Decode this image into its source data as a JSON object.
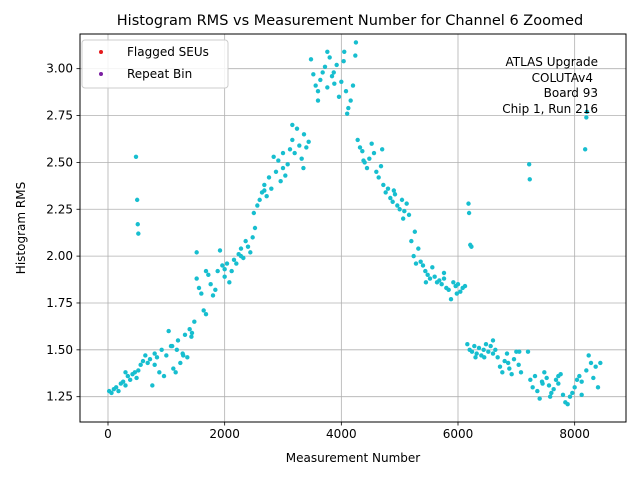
{
  "chart_data": {
    "type": "scatter",
    "title": "Histogram RMS vs Measurement Number for Channel 6 Zoomed",
    "xlabel": "Measurement Number",
    "ylabel": "Histogram RMS",
    "xlim": [
      -480,
      8880
    ],
    "ylim": [
      1.115,
      3.185
    ],
    "xticks": [
      0,
      2000,
      4000,
      6000,
      8000
    ],
    "xtick_labels": [
      "0",
      "2000",
      "4000",
      "6000",
      "8000"
    ],
    "yticks": [
      1.25,
      1.5,
      1.75,
      2.0,
      2.25,
      2.5,
      2.75,
      3.0
    ],
    "ytick_labels": [
      "1.25",
      "1.50",
      "1.75",
      "2.00",
      "2.25",
      "2.50",
      "2.75",
      "3.00"
    ],
    "grid": true,
    "legend_placement": "upper-left",
    "legend": [
      {
        "label": "Flagged SEUs",
        "color": "#e41a1c"
      },
      {
        "label": "Repeat Bin",
        "color": "#7b1fa2"
      }
    ],
    "annotation_lines": [
      "ATLAS Upgrade",
      "COLUTAv4",
      "Board 93",
      "Chip 1, Run 216"
    ],
    "marker_color": "#17becf",
    "series": [
      {
        "color": "#17becf",
        "points": [
          [
            20,
            1.28
          ],
          [
            60,
            1.27
          ],
          [
            100,
            1.29
          ],
          [
            140,
            1.3
          ],
          [
            180,
            1.28
          ],
          [
            220,
            1.32
          ],
          [
            260,
            1.33
          ],
          [
            300,
            1.31
          ],
          [
            340,
            1.36
          ],
          [
            380,
            1.34
          ],
          [
            420,
            1.37
          ],
          [
            460,
            1.38
          ],
          [
            490,
            1.35
          ],
          [
            520,
            1.39
          ],
          [
            560,
            1.42
          ],
          [
            600,
            1.44
          ],
          [
            640,
            1.47
          ],
          [
            680,
            1.43
          ],
          [
            720,
            1.45
          ],
          [
            760,
            1.31
          ],
          [
            800,
            1.48
          ],
          [
            840,
            1.46
          ],
          [
            880,
            1.38
          ],
          [
            920,
            1.5
          ],
          [
            960,
            1.36
          ],
          [
            1000,
            1.47
          ],
          [
            1040,
            1.6
          ],
          [
            1080,
            1.52
          ],
          [
            1120,
            1.4
          ],
          [
            1160,
            1.38
          ],
          [
            1200,
            1.55
          ],
          [
            1240,
            1.43
          ],
          [
            1280,
            1.48
          ],
          [
            1320,
            1.58
          ],
          [
            1360,
            1.46
          ],
          [
            1400,
            1.61
          ],
          [
            1440,
            1.59
          ],
          [
            1480,
            1.65
          ],
          [
            1520,
            1.88
          ],
          [
            1560,
            1.83
          ],
          [
            1600,
            1.8
          ],
          [
            1640,
            1.71
          ],
          [
            1680,
            1.69
          ],
          [
            1720,
            1.9
          ],
          [
            1760,
            1.85
          ],
          [
            1800,
            1.79
          ],
          [
            1840,
            1.82
          ],
          [
            1880,
            1.92
          ],
          [
            1920,
            2.03
          ],
          [
            1960,
            1.95
          ],
          [
            2000,
            1.93
          ],
          [
            2040,
            1.96
          ],
          [
            2080,
            1.86
          ],
          [
            2120,
            1.92
          ],
          [
            2160,
            1.98
          ],
          [
            2200,
            1.96
          ],
          [
            2240,
            2.01
          ],
          [
            2280,
            2.04
          ],
          [
            2320,
            1.99
          ],
          [
            2360,
            2.08
          ],
          [
            2400,
            2.05
          ],
          [
            2440,
            2.02
          ],
          [
            2480,
            2.1
          ],
          [
            2520,
            2.15
          ],
          [
            2560,
            2.27
          ],
          [
            2600,
            2.3
          ],
          [
            2640,
            2.34
          ],
          [
            2680,
            2.38
          ],
          [
            2720,
            2.32
          ],
          [
            2760,
            2.42
          ],
          [
            2800,
            2.36
          ],
          [
            2840,
            2.53
          ],
          [
            2880,
            2.45
          ],
          [
            2920,
            2.51
          ],
          [
            2960,
            2.4
          ],
          [
            3000,
            2.47
          ],
          [
            3040,
            2.43
          ],
          [
            3080,
            2.49
          ],
          [
            3120,
            2.57
          ],
          [
            3160,
            2.62
          ],
          [
            3200,
            2.55
          ],
          [
            3240,
            2.68
          ],
          [
            3280,
            2.59
          ],
          [
            3320,
            2.52
          ],
          [
            3360,
            2.65
          ],
          [
            3400,
            2.58
          ],
          [
            3440,
            2.61
          ],
          [
            3480,
            3.05
          ],
          [
            3520,
            2.97
          ],
          [
            3560,
            2.91
          ],
          [
            3600,
            2.88
          ],
          [
            3640,
            2.94
          ],
          [
            3680,
            2.98
          ],
          [
            3720,
            3.01
          ],
          [
            3760,
            2.9
          ],
          [
            3800,
            3.06
          ],
          [
            3840,
            2.96
          ],
          [
            3880,
            2.92
          ],
          [
            3920,
            3.02
          ],
          [
            3960,
            2.85
          ],
          [
            4000,
            2.93
          ],
          [
            4040,
            3.04
          ],
          [
            4080,
            2.88
          ],
          [
            4120,
            2.79
          ],
          [
            4160,
            2.83
          ],
          [
            4200,
            2.91
          ],
          [
            4240,
            3.07
          ],
          [
            4280,
            2.62
          ],
          [
            4320,
            2.58
          ],
          [
            4360,
            2.56
          ],
          [
            4400,
            2.5
          ],
          [
            4440,
            2.47
          ],
          [
            4480,
            2.52
          ],
          [
            4520,
            2.6
          ],
          [
            4560,
            2.55
          ],
          [
            4600,
            2.45
          ],
          [
            4640,
            2.42
          ],
          [
            4680,
            2.48
          ],
          [
            4720,
            2.38
          ],
          [
            4760,
            2.34
          ],
          [
            4800,
            2.36
          ],
          [
            4840,
            2.31
          ],
          [
            4880,
            2.29
          ],
          [
            4920,
            2.33
          ],
          [
            4960,
            2.27
          ],
          [
            5000,
            2.25
          ],
          [
            5040,
            2.3
          ],
          [
            5080,
            2.24
          ],
          [
            5120,
            2.28
          ],
          [
            5160,
            2.22
          ],
          [
            5200,
            2.08
          ],
          [
            5240,
            2.0
          ],
          [
            5280,
            1.96
          ],
          [
            5320,
            2.04
          ],
          [
            5360,
            1.97
          ],
          [
            5400,
            1.95
          ],
          [
            5440,
            1.92
          ],
          [
            5480,
            1.9
          ],
          [
            5520,
            1.88
          ],
          [
            5560,
            1.94
          ],
          [
            5600,
            1.89
          ],
          [
            5640,
            1.86
          ],
          [
            5680,
            1.87
          ],
          [
            5720,
            1.85
          ],
          [
            5760,
            1.88
          ],
          [
            5800,
            1.83
          ],
          [
            5840,
            1.82
          ],
          [
            5880,
            1.77
          ],
          [
            5920,
            1.86
          ],
          [
            5960,
            1.84
          ],
          [
            6000,
            1.85
          ],
          [
            6040,
            1.81
          ],
          [
            6080,
            1.83
          ],
          [
            6120,
            1.84
          ],
          [
            6160,
            1.53
          ],
          [
            6200,
            1.5
          ],
          [
            6240,
            1.49
          ],
          [
            6280,
            1.52
          ],
          [
            6320,
            1.48
          ],
          [
            6360,
            1.51
          ],
          [
            6400,
            1.47
          ],
          [
            6440,
            1.5
          ],
          [
            6480,
            1.53
          ],
          [
            6520,
            1.49
          ],
          [
            6560,
            1.52
          ],
          [
            6600,
            1.48
          ],
          [
            6640,
            1.5
          ],
          [
            6680,
            1.46
          ],
          [
            6720,
            1.41
          ],
          [
            6760,
            1.38
          ],
          [
            6800,
            1.44
          ],
          [
            6840,
            1.48
          ],
          [
            6880,
            1.4
          ],
          [
            6920,
            1.37
          ],
          [
            6960,
            1.45
          ],
          [
            7000,
            1.49
          ],
          [
            7040,
            1.42
          ],
          [
            7080,
            1.38
          ],
          [
            7200,
            1.49
          ],
          [
            7240,
            1.34
          ],
          [
            7280,
            1.3
          ],
          [
            7320,
            1.36
          ],
          [
            7360,
            1.28
          ],
          [
            7400,
            1.24
          ],
          [
            7440,
            1.33
          ],
          [
            7480,
            1.38
          ],
          [
            7520,
            1.35
          ],
          [
            7560,
            1.31
          ],
          [
            7600,
            1.27
          ],
          [
            7640,
            1.29
          ],
          [
            7680,
            1.34
          ],
          [
            7720,
            1.32
          ],
          [
            7760,
            1.37
          ],
          [
            7800,
            1.26
          ],
          [
            7840,
            1.22
          ],
          [
            7880,
            1.21
          ],
          [
            7920,
            1.25
          ],
          [
            7960,
            1.27
          ],
          [
            8000,
            1.3
          ],
          [
            8040,
            1.34
          ],
          [
            8080,
            1.36
          ],
          [
            8120,
            1.33
          ],
          [
            8200,
            1.39
          ],
          [
            8240,
            1.47
          ],
          [
            8280,
            1.43
          ],
          [
            8320,
            1.35
          ],
          [
            8360,
            1.41
          ],
          [
            8400,
            1.3
          ],
          [
            8440,
            1.43
          ],
          [
            480,
            2.53
          ],
          [
            500,
            2.3
          ],
          [
            510,
            2.17
          ],
          [
            520,
            2.12
          ],
          [
            1520,
            2.02
          ],
          [
            3760,
            3.09
          ],
          [
            4050,
            3.09
          ],
          [
            4250,
            3.14
          ],
          [
            4100,
            2.76
          ],
          [
            6180,
            2.28
          ],
          [
            6190,
            2.23
          ],
          [
            6210,
            2.06
          ],
          [
            6230,
            2.05
          ],
          [
            7220,
            2.49
          ],
          [
            7230,
            2.41
          ],
          [
            8180,
            2.57
          ],
          [
            8200,
            2.74
          ],
          [
            8210,
            2.77
          ],
          [
            1180,
            1.5
          ],
          [
            1290,
            1.47
          ],
          [
            1430,
            1.57
          ],
          [
            1680,
            1.92
          ],
          [
            2280,
            2.0
          ],
          [
            2680,
            2.35
          ],
          [
            3000,
            2.55
          ],
          [
            3160,
            2.7
          ],
          [
            3350,
            2.47
          ],
          [
            3600,
            2.83
          ],
          [
            3870,
            2.98
          ],
          [
            4380,
            2.51
          ],
          [
            4700,
            2.57
          ],
          [
            4900,
            2.35
          ],
          [
            5260,
            2.13
          ],
          [
            5760,
            1.91
          ],
          [
            6300,
            1.46
          ],
          [
            6600,
            1.55
          ],
          [
            7050,
            1.49
          ],
          [
            7450,
            1.32
          ],
          [
            7720,
            1.36
          ],
          [
            8120,
            1.26
          ],
          [
            300,
            1.38
          ],
          [
            800,
            1.42
          ],
          [
            1100,
            1.52
          ],
          [
            2000,
            1.89
          ],
          [
            2500,
            2.23
          ],
          [
            5060,
            2.2
          ],
          [
            5450,
            1.86
          ],
          [
            5980,
            1.8
          ],
          [
            6450,
            1.46
          ],
          [
            6860,
            1.43
          ],
          [
            7580,
            1.25
          ]
        ]
      }
    ]
  }
}
